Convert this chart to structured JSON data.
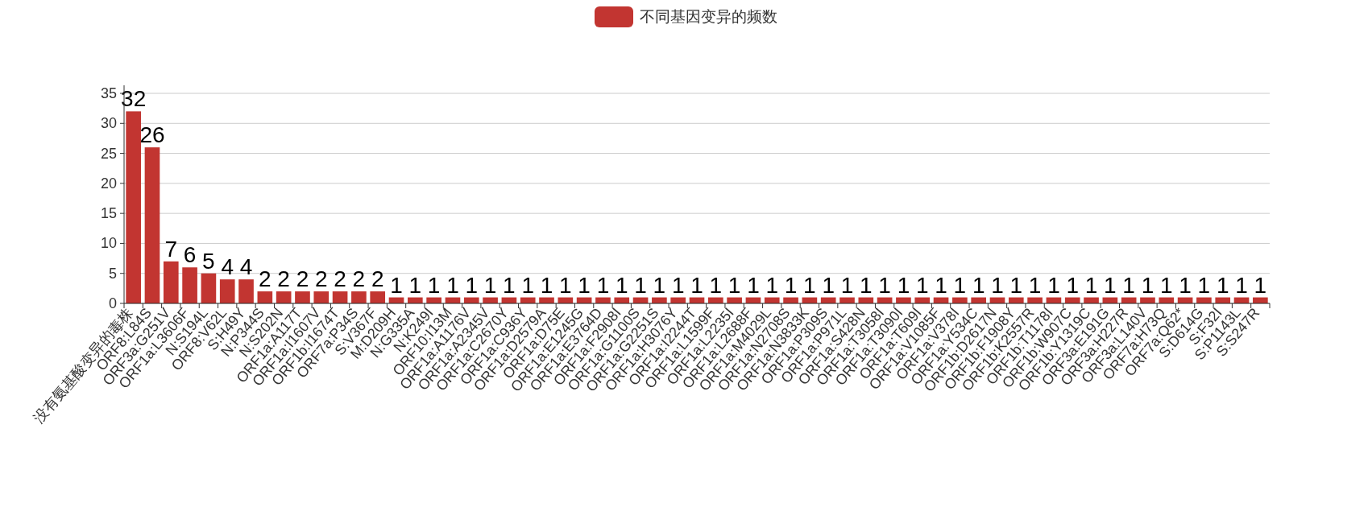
{
  "chart_data": {
    "type": "bar",
    "categories": [
      "没有氨基酸变异的毒株",
      "ORF8:L84S",
      "ORF3a:G251V",
      "ORF1a:L3606F",
      "N:S194L",
      "ORF8:V62L",
      "S:H49Y",
      "N:P344S",
      "N:S202N",
      "ORF1a:A117T",
      "ORF1a:I1607V",
      "ORF1b:I1674T",
      "ORF7a:P34S",
      "S:V367F",
      "M:D209H",
      "N:G335A",
      "N:K249I",
      "ORF10:I13M",
      "ORF1a:A1176V",
      "ORF1a:A2345V",
      "ORF1a:C2670Y",
      "ORF1a:C936Y",
      "ORF1a:D2579A",
      "ORF1a:D75E",
      "ORF1a:E1245G",
      "ORF1a:E3764D",
      "ORF1a:F2908I",
      "ORF1a:G1100S",
      "ORF1a:G2251S",
      "ORF1a:H3076Y",
      "ORF1a:I2244T",
      "ORF1a:L1599F",
      "ORF1a:L2235I",
      "ORF1a:L2688F",
      "ORF1a:M4029L",
      "ORF1a:N2708S",
      "ORF1a:N3833K",
      "ORF1a:P309S",
      "ORF1a:P971L",
      "ORF1a:S428N",
      "ORF1a:T3058I",
      "ORF1a:T3090I",
      "ORF1a:T609I",
      "ORF1a:V1085F",
      "ORF1a:V378I",
      "ORF1a:Y534C",
      "ORF1b:D2617N",
      "ORF1b:F1908Y",
      "ORF1b:K2557R",
      "ORF1b:T1178I",
      "ORF1b:W907C",
      "ORF1b:Y1319C",
      "ORF3a:E191G",
      "ORF3a:H227R",
      "ORF3a:L140V",
      "ORF7a:H73Q",
      "ORF7a:Q62*",
      "S:D614G",
      "S:F32I",
      "S:P1143L",
      "S:S247R"
    ],
    "series": [
      {
        "name": "不同基因变异的频数",
        "color": "#c23531",
        "values": [
          32,
          26,
          7,
          6,
          5,
          4,
          4,
          2,
          2,
          2,
          2,
          2,
          2,
          2,
          1,
          1,
          1,
          1,
          1,
          1,
          1,
          1,
          1,
          1,
          1,
          1,
          1,
          1,
          1,
          1,
          1,
          1,
          1,
          1,
          1,
          1,
          1,
          1,
          1,
          1,
          1,
          1,
          1,
          1,
          1,
          1,
          1,
          1,
          1,
          1,
          1,
          1,
          1,
          1,
          1,
          1,
          1,
          1,
          1,
          1,
          1
        ]
      }
    ],
    "ylim": [
      0,
      35
    ],
    "yticks": [
      0,
      5,
      10,
      15,
      20,
      25,
      30,
      35
    ],
    "grid": "y",
    "legend": "top",
    "data_labels": true
  }
}
